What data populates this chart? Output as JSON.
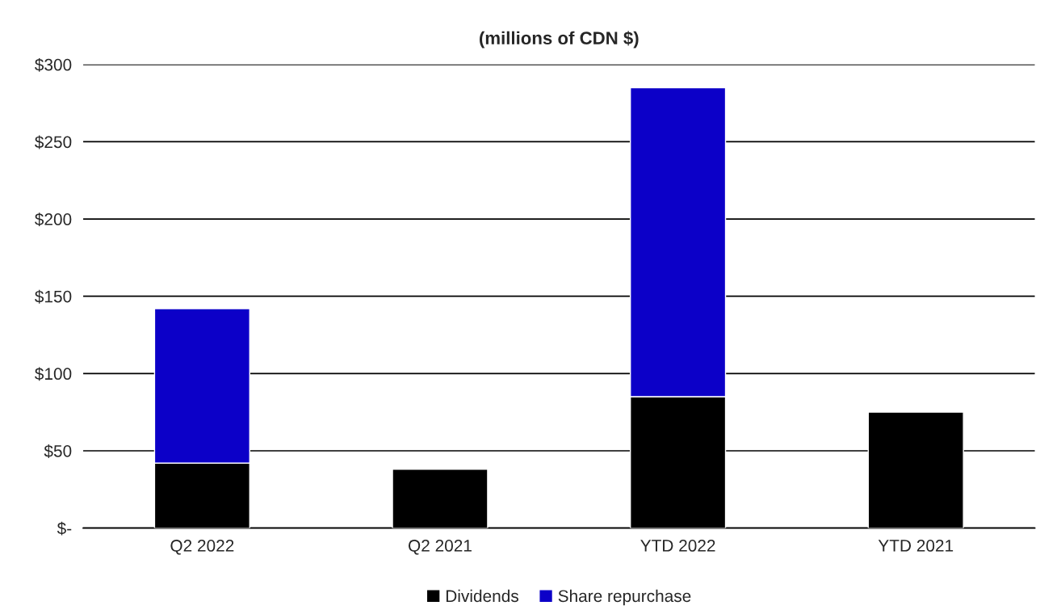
{
  "chart_data": {
    "type": "bar",
    "title": "(millions of CDN $)",
    "categories": [
      "Q2 2022",
      "Q2 2021",
      "YTD 2022",
      "YTD 2021"
    ],
    "series": [
      {
        "name": "Dividends",
        "color": "#000000",
        "values": [
          42,
          38,
          85,
          75
        ]
      },
      {
        "name": "Share repurchase",
        "color": "#0c00c8",
        "values": [
          100,
          null,
          200,
          null
        ]
      }
    ],
    "stacked": true,
    "ylim": [
      0,
      300
    ],
    "yticks": [
      {
        "value": 0,
        "label": "$-"
      },
      {
        "value": 50,
        "label": "$50"
      },
      {
        "value": 100,
        "label": "$100"
      },
      {
        "value": 150,
        "label": "$150"
      },
      {
        "value": 200,
        "label": "$200"
      },
      {
        "value": 250,
        "label": "$250"
      },
      {
        "value": 300,
        "label": "$300"
      }
    ],
    "grid": "y",
    "legend": "bottom"
  }
}
